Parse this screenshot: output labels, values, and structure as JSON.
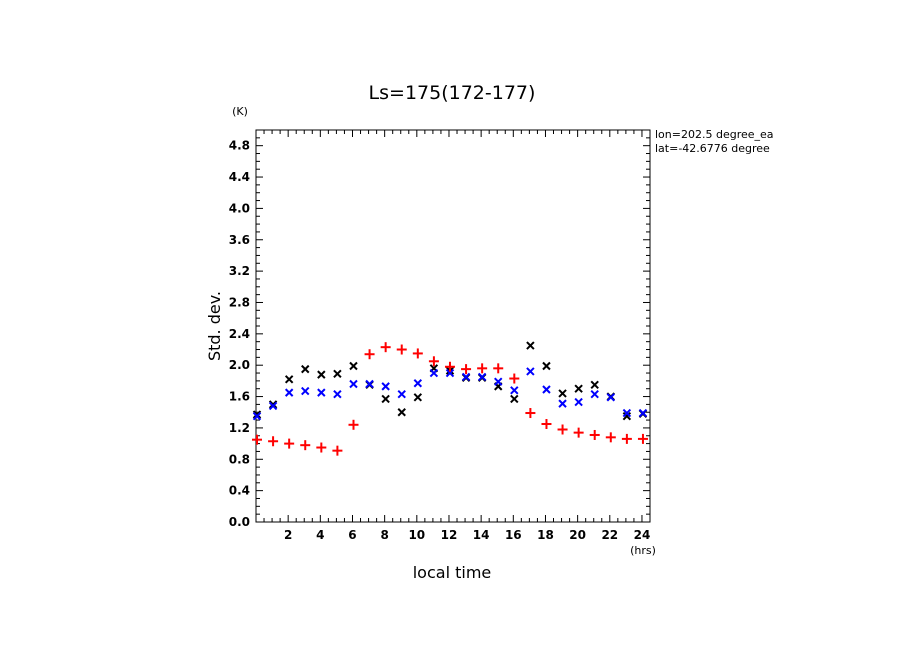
{
  "chart_data": {
    "type": "scatter",
    "title": "Ls=175(172-177)",
    "xlabel": "local time",
    "ylabel": "Std. dev.",
    "x_unit": "(hrs)",
    "y_unit": "(K)",
    "annotations": [
      "lon=202.5 degree_ea",
      "lat=-42.6776 degree"
    ],
    "xlim": [
      0.0,
      24.5
    ],
    "ylim": [
      0.0,
      5.0
    ],
    "x_ticks": [
      2,
      4,
      6,
      8,
      10,
      12,
      14,
      16,
      18,
      20,
      22,
      24
    ],
    "y_ticks": [
      0.0,
      0.4,
      0.8,
      1.2,
      1.6,
      2.0,
      2.4,
      2.8,
      3.2,
      3.6,
      4.0,
      4.4,
      4.8
    ],
    "grid": false,
    "x": [
      0.0,
      1.0,
      2.0,
      3.0,
      4.0,
      5.0,
      6.0,
      7.0,
      8.0,
      9.0,
      10.0,
      11.0,
      12.0,
      13.0,
      14.0,
      15.0,
      16.0,
      17.0,
      18.0,
      19.0,
      20.0,
      21.0,
      22.0,
      23.0,
      24.0
    ],
    "series": [
      {
        "marker": "x",
        "color": "#000000",
        "values": [
          1.37,
          1.5,
          1.82,
          1.95,
          1.88,
          1.89,
          1.99,
          1.75,
          1.57,
          1.4,
          1.59,
          1.96,
          1.93,
          1.84,
          1.84,
          1.73,
          1.57,
          2.25,
          1.99,
          1.64,
          1.7,
          1.75,
          1.6,
          1.35,
          1.38
        ]
      },
      {
        "marker": "x",
        "color": "#0000ff",
        "values": [
          1.35,
          1.48,
          1.65,
          1.67,
          1.65,
          1.63,
          1.76,
          1.76,
          1.73,
          1.63,
          1.77,
          1.9,
          1.9,
          1.85,
          1.85,
          1.79,
          1.68,
          1.92,
          1.69,
          1.51,
          1.53,
          1.63,
          1.59,
          1.39,
          1.39
        ]
      },
      {
        "marker": "+",
        "color": "#ff0000",
        "values": [
          1.05,
          1.03,
          1.0,
          0.98,
          0.95,
          0.91,
          1.24,
          2.14,
          2.23,
          2.2,
          2.15,
          2.05,
          1.98,
          1.95,
          1.96,
          1.96,
          1.83,
          1.39,
          1.25,
          1.18,
          1.14,
          1.11,
          1.08,
          1.06,
          1.06
        ]
      }
    ]
  }
}
